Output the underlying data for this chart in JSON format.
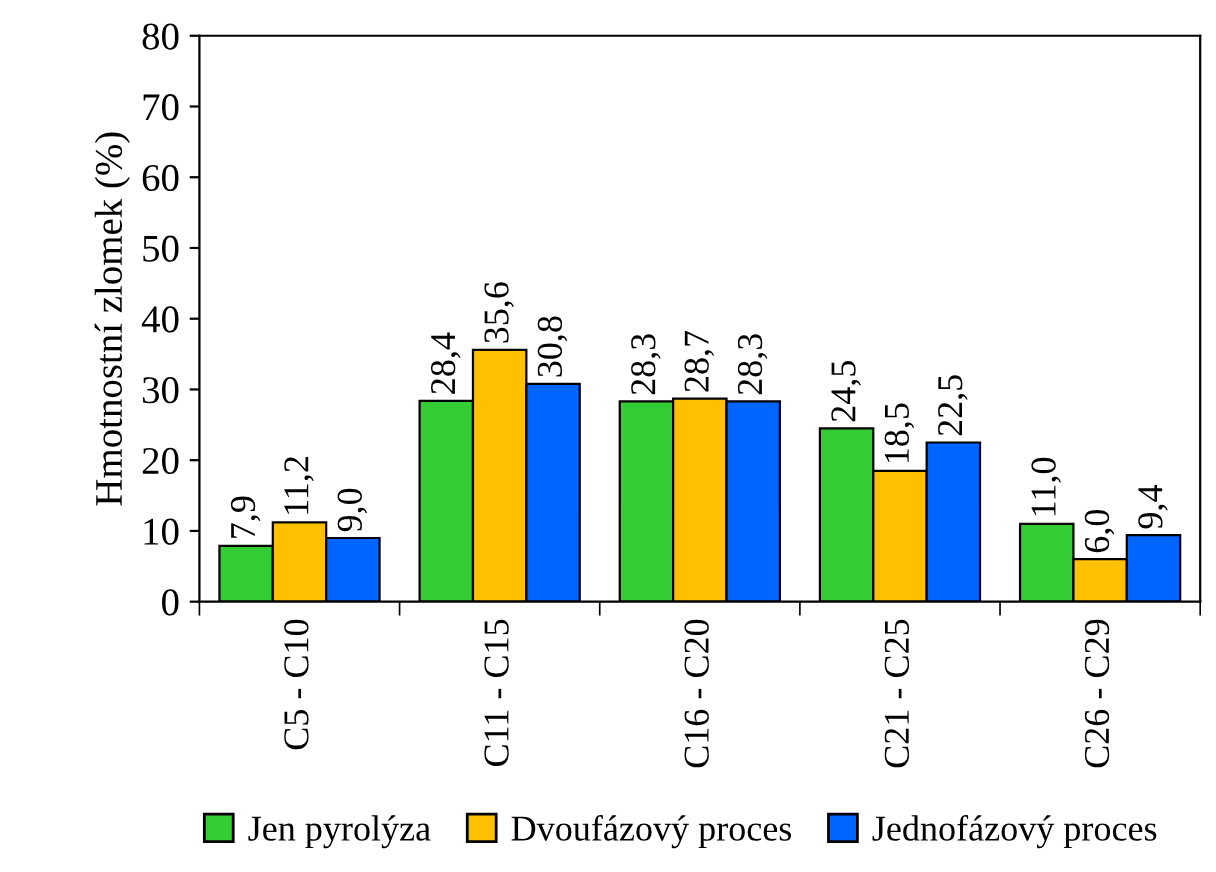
{
  "chart_data": {
    "type": "bar",
    "ylabel": "Hmotnostní zlomek (%)",
    "categories": [
      "C5 - C10",
      "C11 - C15",
      "C16 - C20",
      "C21 - C25",
      "C26 - C29"
    ],
    "series": [
      {
        "name": "Jen pyrolýza",
        "color": "#33cc33",
        "values": [
          7.9,
          28.4,
          28.3,
          24.5,
          11.0
        ],
        "value_labels": [
          "7,9",
          "28,4",
          "28,3",
          "24,5",
          "11,0"
        ]
      },
      {
        "name": "Dvoufázový proces",
        "color": "#ffc000",
        "values": [
          11.2,
          35.6,
          28.7,
          18.5,
          6.0
        ],
        "value_labels": [
          "11,2",
          "35,6",
          "28,7",
          "18,5",
          "6,0"
        ]
      },
      {
        "name": "Jednofázový proces",
        "color": "#0066ff",
        "values": [
          9.0,
          30.8,
          28.3,
          22.5,
          9.4
        ],
        "value_labels": [
          "9,0",
          "30,8",
          "28,3",
          "22,5",
          "9,4"
        ]
      }
    ],
    "ylim": [
      0,
      80
    ],
    "yticks": [
      0,
      10,
      20,
      30,
      40,
      50,
      60,
      70,
      80
    ],
    "grid": false,
    "legend": "bottom"
  }
}
